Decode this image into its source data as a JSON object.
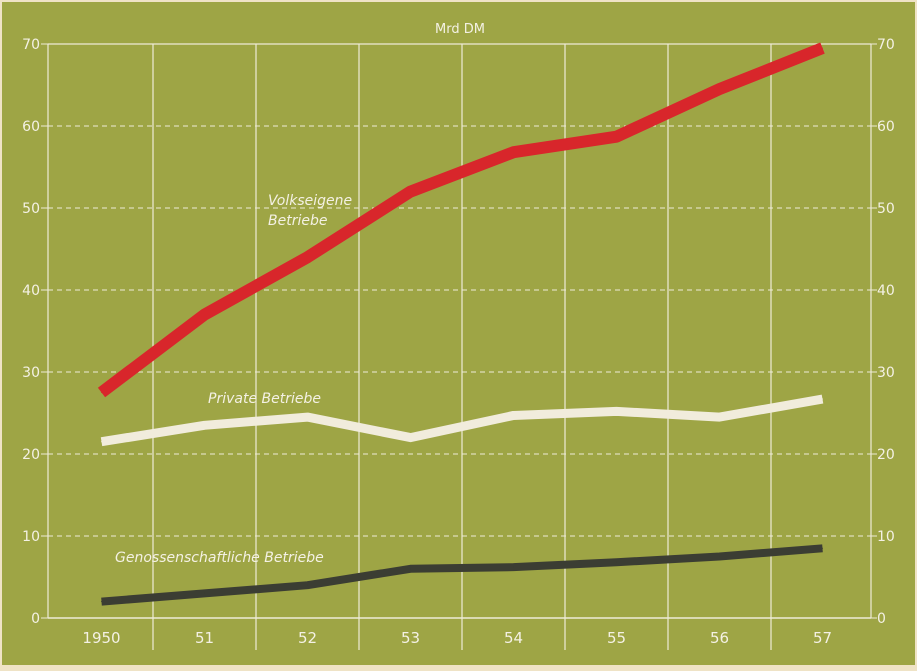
{
  "chart_data": {
    "type": "line",
    "unit_label": "Mrd DM",
    "categories": [
      "1950",
      "51",
      "52",
      "53",
      "54",
      "55",
      "56",
      "57"
    ],
    "ylim": [
      0,
      70
    ],
    "yticks": [
      "0",
      "10",
      "20",
      "30",
      "40",
      "50",
      "60",
      "70"
    ],
    "grid": true,
    "series": [
      {
        "name": "Volkseigene Betriebe",
        "label_lines": [
          "Volkseigene",
          "Betriebe"
        ],
        "color": "#d8262b",
        "values": [
          27.5,
          37,
          44,
          52,
          56.8,
          58.7,
          64.5,
          69.5
        ]
      },
      {
        "name": "Private Betriebe",
        "label_lines": [
          "Private Betriebe"
        ],
        "color": "#f1ecdc",
        "values": [
          21.5,
          23.5,
          24.5,
          22,
          24.7,
          25.2,
          24.5,
          26.7
        ]
      },
      {
        "name": "Genossenschaftliche Betriebe",
        "label_lines": [
          "Genossenschaftliche Betriebe"
        ],
        "color": "#3b3d33",
        "values": [
          2,
          3,
          4,
          6,
          6.2,
          6.8,
          7.5,
          8.5
        ]
      }
    ]
  }
}
